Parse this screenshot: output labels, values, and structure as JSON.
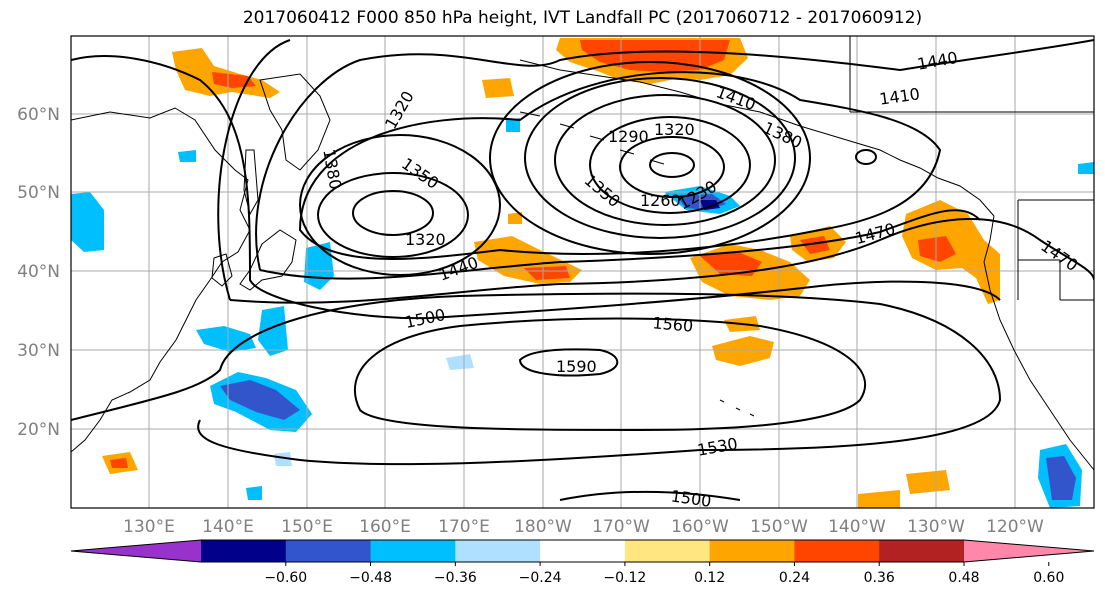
{
  "title": "2017060412 F000 850 hPa height, IVT Landfall PC (2017060712 - 2017060912)",
  "colors": {
    "ocean_bg": "#ffffff",
    "coast": "#000000",
    "grid": "#a9a9a9",
    "contour": "#000000"
  },
  "lat_labels": [
    "60°N",
    "50°N",
    "40°N",
    "30°N",
    "20°N"
  ],
  "lon_labels": [
    "130°E",
    "140°E",
    "150°E",
    "160°E",
    "170°E",
    "180°W",
    "170°W",
    "160°W",
    "150°W",
    "140°W",
    "130°W",
    "120°W"
  ],
  "contour_labels": [
    "1320",
    "1350",
    "1380",
    "1320",
    "1290",
    "1320",
    "1260",
    "1230",
    "1350",
    "1380",
    "1410",
    "1410",
    "1440",
    "1470",
    "1470",
    "1440",
    "1500",
    "1560",
    "1590",
    "1530",
    "1500"
  ],
  "colorbar": {
    "colors": [
      "#9932cc",
      "#00008b",
      "#3355cc",
      "#00bfff",
      "#b0e0ff",
      "#ffffff",
      "#ffe680",
      "#ffa500",
      "#ff4500",
      "#b22222",
      "#ff88aa"
    ],
    "ticks": [
      "−0.60",
      "−0.48",
      "−0.36",
      "−0.24",
      "−0.12",
      "0.12",
      "0.24",
      "0.36",
      "0.48",
      "0.60"
    ]
  }
}
